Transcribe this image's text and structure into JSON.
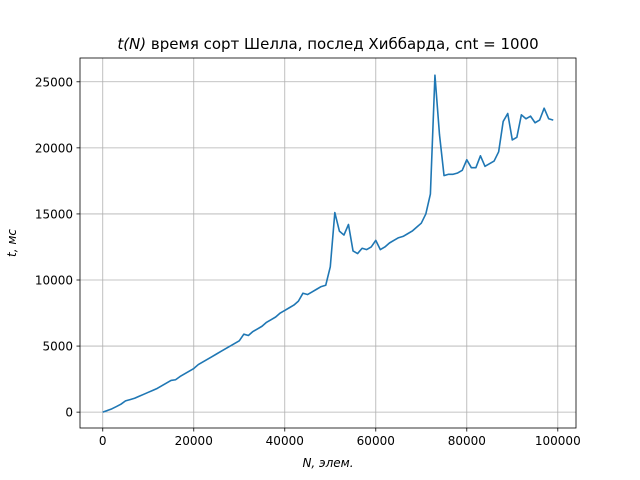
{
  "chart_data": {
    "type": "line",
    "title": "t(N) время сорт Шелла, послед Хиббарда, cnt = 1000",
    "title_parts": {
      "func": "t(N)",
      "rest": " время сорт Шелла, послед Хиббарда, cnt = 1000"
    },
    "xlabel": "N, элем.",
    "ylabel": "t, мс",
    "xlim": [
      -5000,
      104000
    ],
    "ylim": [
      -1200,
      26800
    ],
    "xticks": [
      0,
      20000,
      40000,
      60000,
      80000,
      100000
    ],
    "yticks": [
      0,
      5000,
      10000,
      15000,
      20000,
      25000
    ],
    "grid": true,
    "line_color": "#1f77b4",
    "series": [
      {
        "x": [
          0,
          1000,
          2000,
          3000,
          4000,
          5000,
          6000,
          7000,
          8000,
          9000,
          10000,
          11000,
          12000,
          13000,
          14000,
          15000,
          16000,
          17000,
          18000,
          19000,
          20000,
          21000,
          22000,
          23000,
          24000,
          25000,
          26000,
          27000,
          28000,
          29000,
          30000,
          31000,
          32000,
          33000,
          34000,
          35000,
          36000,
          37000,
          38000,
          39000,
          40000,
          41000,
          42000,
          43000,
          44000,
          45000,
          46000,
          47000,
          48000,
          49000,
          50000,
          51000,
          52000,
          53000,
          54000,
          55000,
          56000,
          57000,
          58000,
          59000,
          60000,
          61000,
          62000,
          63000,
          64000,
          65000,
          66000,
          67000,
          68000,
          69000,
          70000,
          71000,
          72000,
          73000,
          74000,
          75000,
          76000,
          77000,
          78000,
          79000,
          80000,
          81000,
          82000,
          83000,
          84000,
          85000,
          86000,
          87000,
          88000,
          89000,
          90000,
          91000,
          92000,
          93000,
          94000,
          95000,
          96000,
          97000,
          98000,
          99000
        ],
        "values": [
          0,
          120,
          250,
          420,
          600,
          850,
          950,
          1050,
          1200,
          1350,
          1500,
          1650,
          1800,
          2000,
          2200,
          2400,
          2450,
          2700,
          2900,
          3100,
          3300,
          3600,
          3800,
          4000,
          4200,
          4400,
          4600,
          4800,
          5000,
          5200,
          5400,
          5900,
          5800,
          6100,
          6300,
          6500,
          6800,
          7000,
          7200,
          7500,
          7700,
          7900,
          8100,
          8400,
          9000,
          8900,
          9100,
          9300,
          9500,
          9600,
          11000,
          15100,
          13700,
          13400,
          14200,
          12200,
          12000,
          12400,
          12300,
          12500,
          13000,
          12300,
          12500,
          12800,
          13000,
          13200,
          13300,
          13500,
          13700,
          14000,
          14300,
          15000,
          16500,
          25500,
          21000,
          17900,
          18000,
          18000,
          18100,
          18300,
          19100,
          18500,
          18500,
          19400,
          18600,
          18800,
          19000,
          19700,
          22000,
          22600,
          20600,
          20800,
          22500,
          22200,
          22400,
          21900,
          22100,
          23000,
          22200,
          22100
        ]
      }
    ]
  }
}
